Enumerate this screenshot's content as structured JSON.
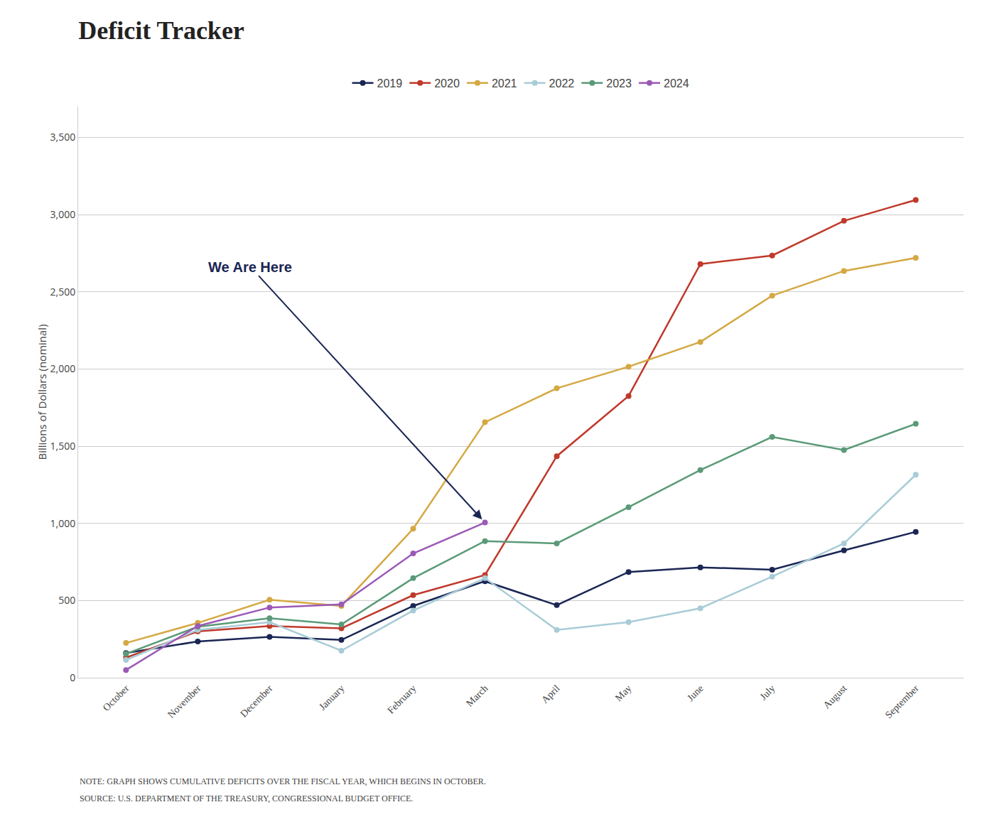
{
  "chart_data": {
    "type": "line",
    "title": "Deficit Tracker",
    "ylabel": "Billions of Dollars (nominal)",
    "categories": [
      "October",
      "November",
      "December",
      "January",
      "February",
      "March",
      "April",
      "May",
      "June",
      "July",
      "August",
      "September"
    ],
    "series": [
      {
        "name": "2019",
        "color": "#1a2654",
        "values": [
          160,
          235,
          265,
          245,
          465,
          625,
          470,
          685,
          715,
          700,
          825,
          945
        ]
      },
      {
        "name": "2020",
        "color": "#c0392b",
        "values": [
          130,
          300,
          335,
          320,
          535,
          665,
          1435,
          1825,
          2680,
          2735,
          2960,
          3095
        ]
      },
      {
        "name": "2021",
        "color": "#d4a843",
        "values": [
          225,
          355,
          505,
          465,
          965,
          1655,
          1875,
          2015,
          2175,
          2475,
          2635,
          2720
        ]
      },
      {
        "name": "2022",
        "color": "#a8ccd7",
        "values": [
          115,
          310,
          360,
          175,
          435,
          645,
          310,
          360,
          450,
          655,
          870,
          1315
        ]
      },
      {
        "name": "2023",
        "color": "#5a9a78",
        "values": [
          155,
          330,
          385,
          345,
          645,
          885,
          870,
          1105,
          1345,
          1560,
          1475,
          1645
        ]
      },
      {
        "name": "2024",
        "color": "#9b59b6",
        "values": [
          50,
          335,
          455,
          475,
          805,
          1005,
          null,
          null,
          null,
          null,
          null,
          null
        ]
      }
    ],
    "ylim": [
      0,
      3700
    ],
    "yticks": [
      0,
      500,
      {
        "value": 1000,
        "label": "1,000"
      },
      {
        "value": 1500,
        "label": "1,500"
      },
      {
        "value": 2000,
        "label": "2,000"
      },
      {
        "value": 2500,
        "label": "2,500"
      },
      {
        "value": 3000,
        "label": "3,000"
      },
      {
        "value": 3500,
        "label": "3,500"
      }
    ],
    "grid": true,
    "legend": "top",
    "marker": "circle",
    "line_style": "solid",
    "annotations": [
      "We Are Here"
    ],
    "notes": [
      "NOTE: GRAPH SHOWS CUMULATIVE DEFICITS OVER THE FISCAL YEAR, WHICH BEGINS IN OCTOBER.",
      "SOURCE: U.S. DEPARTMENT OF THE TREASURY, CONGRESSIONAL BUDGET OFFICE."
    ]
  }
}
